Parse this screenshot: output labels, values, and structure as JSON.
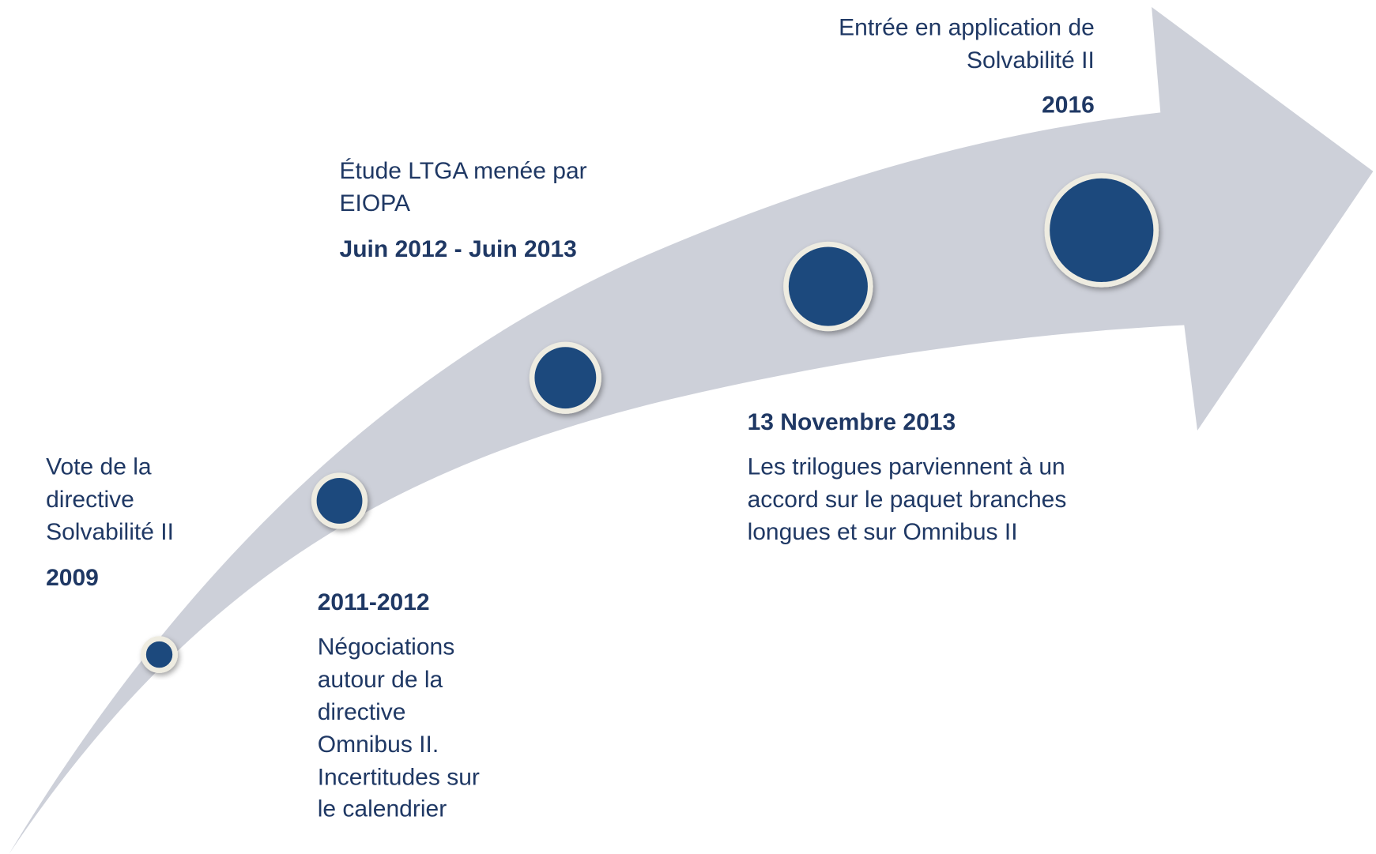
{
  "events": [
    {
      "description": [
        "Vote de la",
        "directive",
        "Solvabilité II"
      ],
      "date": "2009"
    },
    {
      "date": "2011-2012",
      "description": [
        "Négociations",
        "autour de la",
        "directive",
        "Omnibus II.",
        "Incertitudes sur",
        "le calendrier"
      ]
    },
    {
      "description": [
        "Étude LTGA menée par",
        "EIOPA"
      ],
      "date": "Juin 2012 - Juin 2013"
    },
    {
      "date": "13 Novembre 2013",
      "description": [
        "Les trilogues parviennent à un",
        "accord sur le paquet branches",
        "longues et sur Omnibus II"
      ]
    },
    {
      "description": [
        "Entrée en application de",
        "Solvabilité II"
      ],
      "date": "2016"
    }
  ]
}
